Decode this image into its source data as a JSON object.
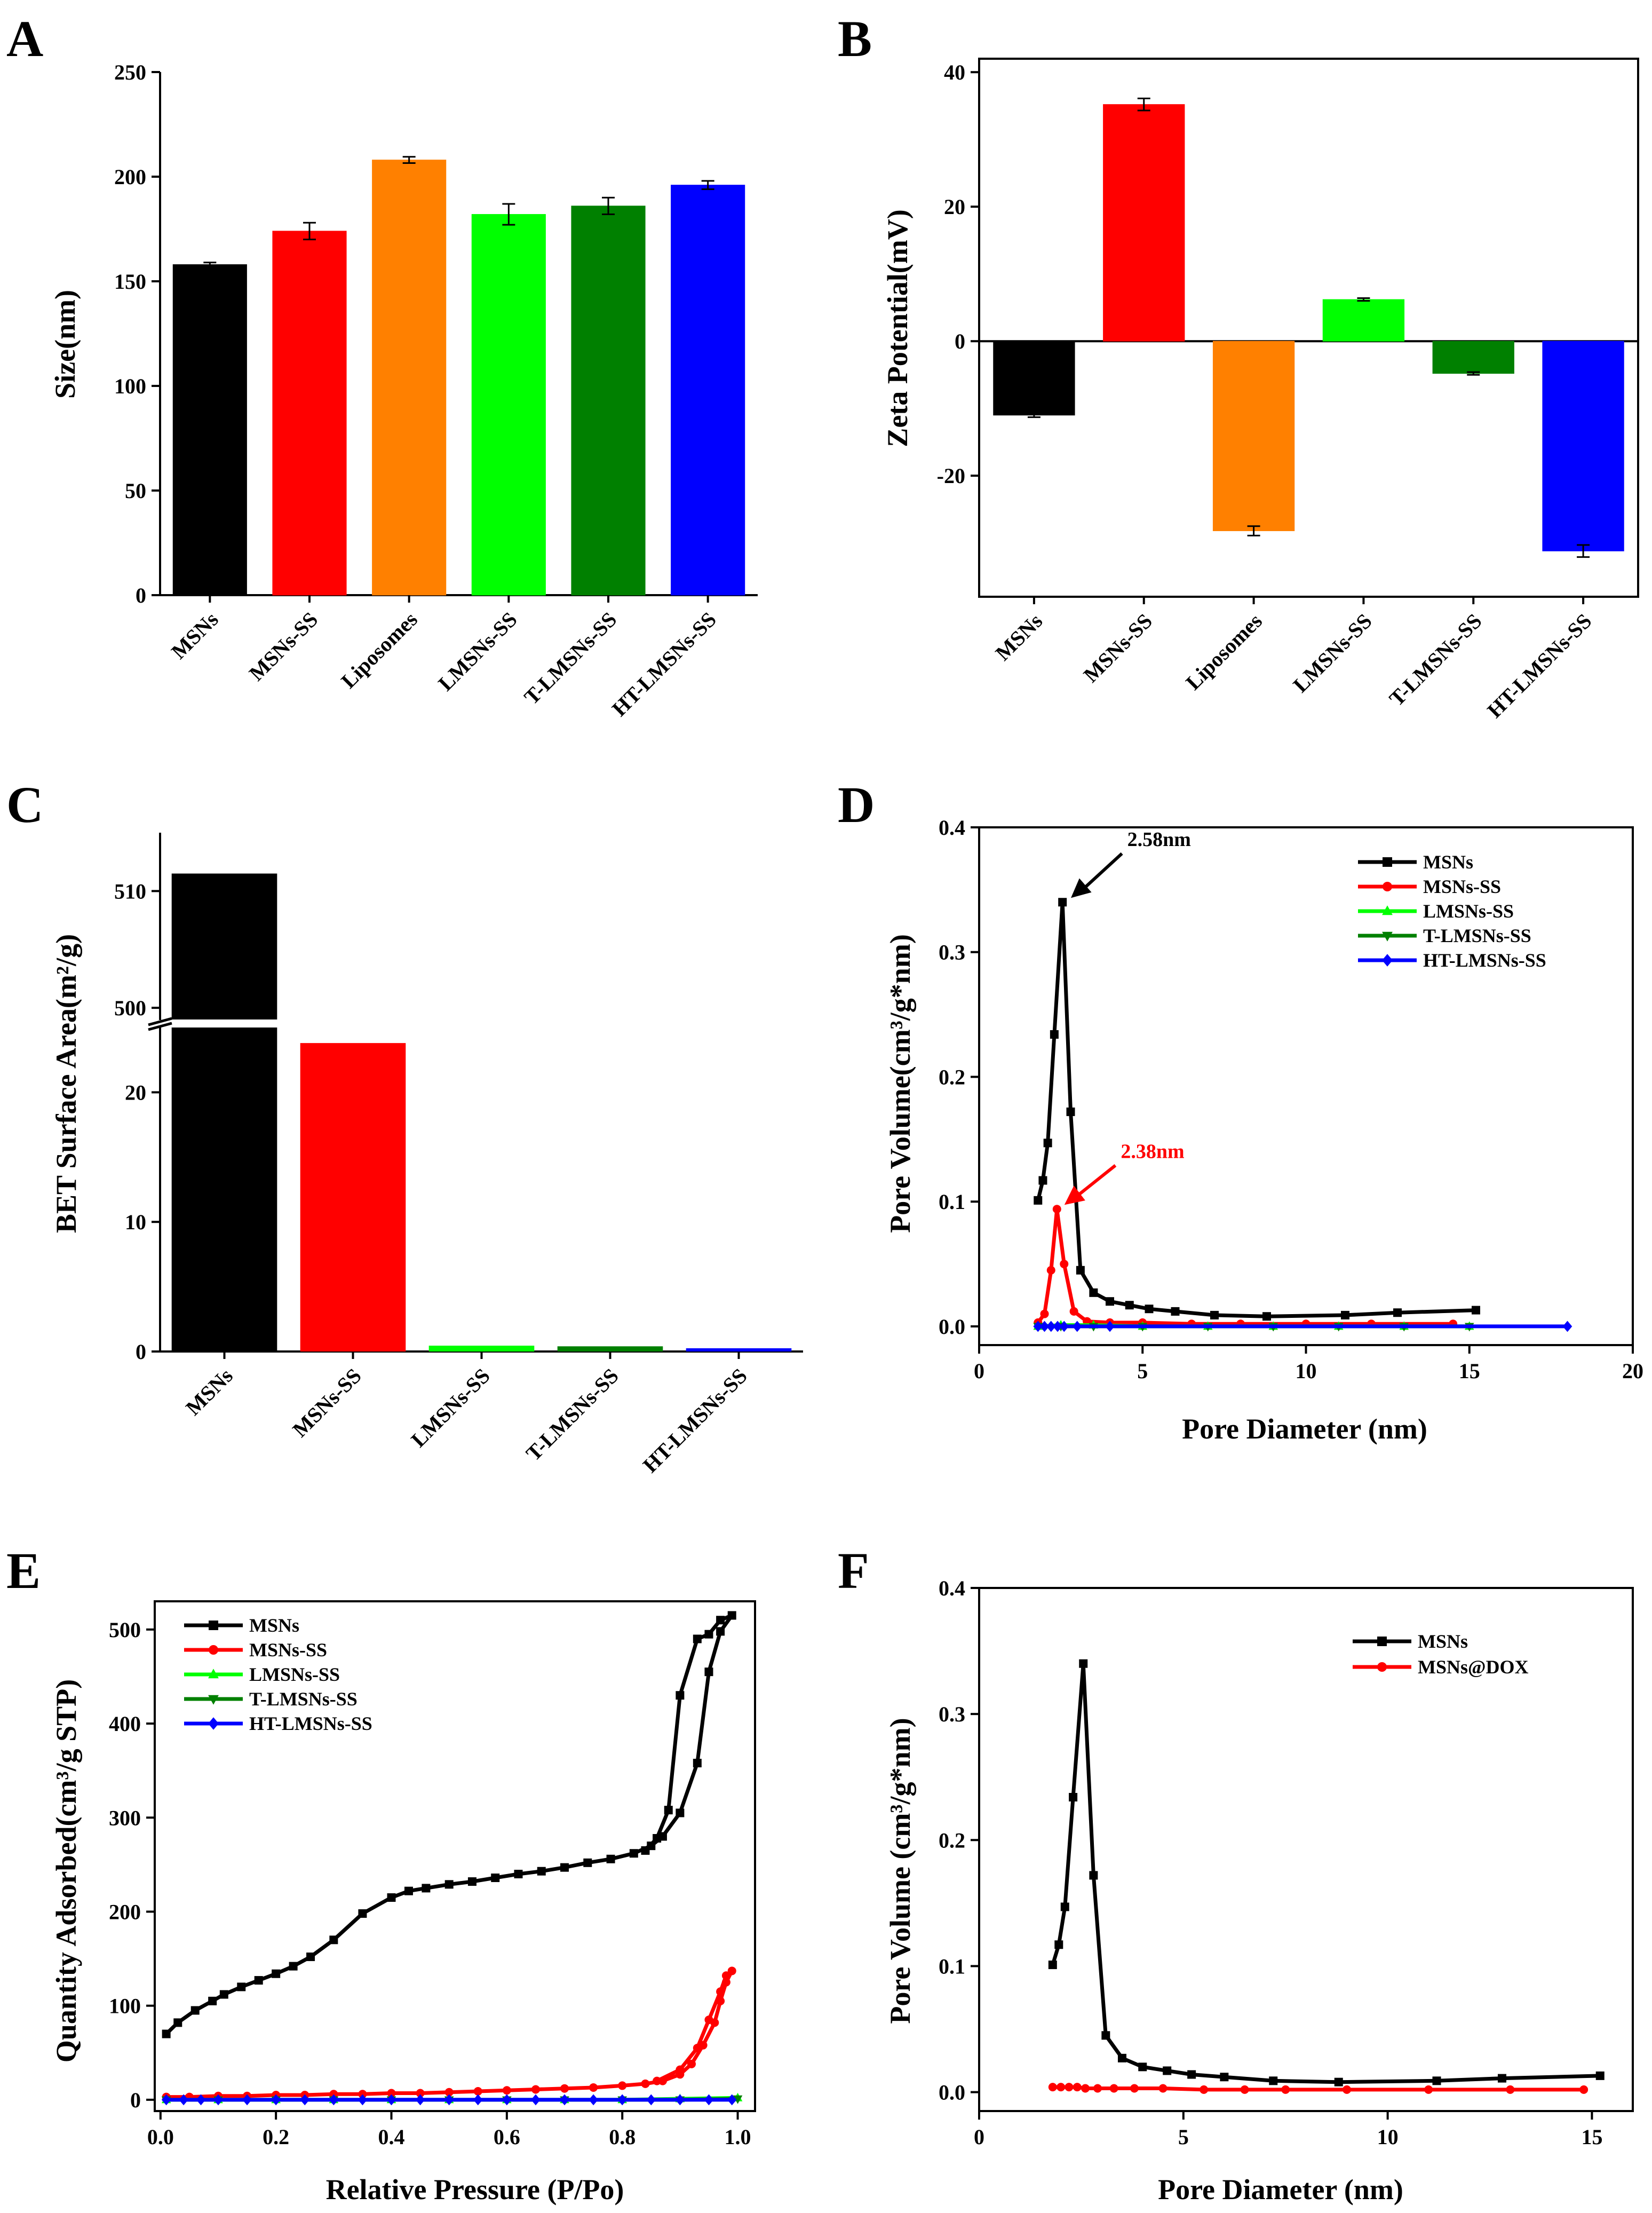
{
  "chart_data": [
    {
      "panel": "A",
      "type": "bar",
      "categories": [
        "MSNs",
        "MSNs-SS",
        "Liposomes",
        "LMSNs-SS",
        "T-LMSNs-SS",
        "HT-LMSNs-SS"
      ],
      "values": [
        158,
        174,
        208,
        182,
        186,
        196
      ],
      "errors": [
        1,
        4,
        1.5,
        5,
        4,
        2
      ],
      "colors": [
        "#000000",
        "#ff0000",
        "#ff8000",
        "#00ff00",
        "#008000",
        "#0000ff"
      ],
      "title": "",
      "xlabel": "",
      "ylabel": "Size(nm)",
      "ylim": [
        0,
        250
      ],
      "yticks": [
        0,
        50,
        100,
        150,
        200,
        250
      ],
      "grid": false
    },
    {
      "panel": "B",
      "type": "bar",
      "categories": [
        "MSNs",
        "MSNs-SS",
        "Liposomes",
        "LMSNs-SS",
        "T-LMSNs-SS",
        "HT-LMSNs-SS"
      ],
      "values": [
        -11,
        35.2,
        -28.2,
        6.2,
        -4.8,
        -31.2
      ],
      "errors": [
        0.3,
        0.9,
        0.7,
        0.2,
        0.2,
        0.9
      ],
      "colors": [
        "#000000",
        "#ff0000",
        "#ff8000",
        "#00ff00",
        "#008000",
        "#0000ff"
      ],
      "title": "",
      "xlabel": "",
      "ylabel": "Zeta Potential(mV)",
      "ylim": [
        -38,
        42
      ],
      "yticks": [
        -20,
        0,
        20,
        40
      ],
      "grid": false
    },
    {
      "panel": "C",
      "type": "bar",
      "categories": [
        "MSNs",
        "MSNs-SS",
        "LMSNs-SS",
        "T-LMSNs-SS",
        "HT-LMSNs-SS"
      ],
      "values": [
        511.5,
        23.8,
        0.45,
        0.4,
        0.25
      ],
      "colors": [
        "#000000",
        "#ff0000",
        "#00ff00",
        "#008000",
        "#0000ff"
      ],
      "title": "",
      "xlabel": "",
      "ylabel": "BET Surface Area(m²/g)",
      "y_break": {
        "lower": [
          0,
          25
        ],
        "upper": [
          499,
          515
        ]
      },
      "yticks_lower": [
        0,
        10,
        20
      ],
      "yticks_upper": [
        500,
        510
      ],
      "grid": false
    },
    {
      "panel": "D",
      "type": "line",
      "xlabel": "Pore Diameter (nm)",
      "ylabel": "Pore Volume(cm³/g*nm)",
      "xlim": [
        0,
        20
      ],
      "ylim": [
        -0.015,
        0.4
      ],
      "xticks": [
        0,
        5,
        10,
        15,
        20
      ],
      "yticks": [
        0.0,
        0.1,
        0.2,
        0.3,
        0.4
      ],
      "legend_position": "top-right",
      "series": [
        {
          "name": "MSNs",
          "color": "#000000",
          "marker": "square",
          "x": [
            1.8,
            1.95,
            2.1,
            2.3,
            2.55,
            2.8,
            3.1,
            3.5,
            4.0,
            4.6,
            5.2,
            6.0,
            7.2,
            8.8,
            11.2,
            12.8,
            15.2
          ],
          "y": [
            0.101,
            0.117,
            0.147,
            0.234,
            0.34,
            0.172,
            0.045,
            0.027,
            0.02,
            0.017,
            0.014,
            0.012,
            0.009,
            0.008,
            0.009,
            0.011,
            0.013
          ]
        },
        {
          "name": "MSNs-SS",
          "color": "#ff0000",
          "marker": "circle",
          "x": [
            1.8,
            2.0,
            2.2,
            2.38,
            2.6,
            2.9,
            3.3,
            4.0,
            5.0,
            6.5,
            8.0,
            10.0,
            12.0,
            14.5
          ],
          "y": [
            0.003,
            0.01,
            0.045,
            0.094,
            0.05,
            0.012,
            0.004,
            0.003,
            0.003,
            0.002,
            0.002,
            0.002,
            0.002,
            0.002
          ]
        },
        {
          "name": "LMSNs-SS",
          "color": "#00ff00",
          "marker": "triangle-up",
          "x": [
            1.8,
            2.5,
            3.5,
            5.0,
            7.0,
            9.0,
            11.0,
            13.0,
            15.0
          ],
          "y": [
            0.0,
            0.001,
            0.001,
            0.0,
            0.0,
            0.0,
            0.0,
            0.0,
            0.0
          ]
        },
        {
          "name": "T-LMSNs-SS",
          "color": "#008000",
          "marker": "triangle-down",
          "x": [
            1.8,
            2.5,
            3.5,
            5.0,
            7.0,
            9.0,
            11.0,
            13.0,
            15.0
          ],
          "y": [
            0.0,
            0.0,
            0.0,
            0.0,
            0.0,
            0.0,
            0.0,
            0.0,
            0.0
          ]
        },
        {
          "name": "HT-LMSNs-SS",
          "color": "#0000ff",
          "marker": "diamond",
          "x": [
            1.8,
            2.0,
            2.2,
            2.4,
            2.6,
            3.0,
            4.0,
            18.0
          ],
          "y": [
            0.0,
            0.0,
            0.0,
            0.0,
            0.0,
            0.0,
            0.0,
            0.0
          ]
        }
      ],
      "annotations": [
        {
          "text": "2.58nm",
          "color": "#000000",
          "x": 2.58,
          "y": 0.34,
          "label_x": 4.5,
          "label_y": 0.385
        },
        {
          "text": "2.38nm",
          "color": "#ff0000",
          "x": 2.38,
          "y": 0.094,
          "label_x": 4.3,
          "label_y": 0.135
        }
      ]
    },
    {
      "panel": "E",
      "type": "line",
      "xlabel": "Relative Pressure (P/Po)",
      "ylabel": "Quantity Adsorbed(cm³/g STP)",
      "xlim": [
        -0.01,
        1.03
      ],
      "ylim": [
        -12,
        530
      ],
      "xticks": [
        0.0,
        0.2,
        0.4,
        0.6,
        0.8,
        1.0
      ],
      "yticks": [
        0,
        100,
        200,
        300,
        400,
        500
      ],
      "legend_position": "top-left",
      "series": [
        {
          "name": "MSNs",
          "color": "#000000",
          "marker": "square",
          "x": [
            0.01,
            0.03,
            0.06,
            0.09,
            0.11,
            0.14,
            0.17,
            0.2,
            0.23,
            0.26,
            0.3,
            0.35,
            0.4,
            0.43,
            0.46,
            0.5,
            0.54,
            0.58,
            0.62,
            0.66,
            0.7,
            0.74,
            0.78,
            0.82,
            0.85,
            0.87,
            0.9,
            0.93,
            0.95,
            0.97,
            0.99,
            0.97,
            0.95,
            0.93,
            0.9,
            0.88,
            0.86,
            0.84
          ],
          "y": [
            70,
            82,
            95,
            105,
            112,
            120,
            127,
            134,
            142,
            152,
            170,
            198,
            215,
            222,
            225,
            229,
            232,
            236,
            240,
            243,
            247,
            252,
            256,
            262,
            270,
            280,
            305,
            358,
            455,
            498,
            515,
            510,
            495,
            490,
            430,
            308,
            278,
            265
          ]
        },
        {
          "name": "MSNs-SS",
          "color": "#ff0000",
          "marker": "circle",
          "x": [
            0.01,
            0.05,
            0.1,
            0.15,
            0.2,
            0.25,
            0.3,
            0.35,
            0.4,
            0.45,
            0.5,
            0.55,
            0.6,
            0.65,
            0.7,
            0.75,
            0.8,
            0.84,
            0.87,
            0.9,
            0.92,
            0.94,
            0.96,
            0.97,
            0.98,
            0.99,
            0.98,
            0.97,
            0.95,
            0.93,
            0.9,
            0.86
          ],
          "y": [
            3,
            3,
            4,
            4,
            5,
            5,
            6,
            6,
            7,
            7,
            8,
            9,
            10,
            11,
            12,
            13,
            15,
            17,
            20,
            27,
            38,
            58,
            82,
            105,
            125,
            137,
            132,
            115,
            85,
            55,
            32,
            20
          ]
        },
        {
          "name": "LMSNs-SS",
          "color": "#00ff00",
          "marker": "triangle-up",
          "x": [
            0.01,
            0.1,
            0.2,
            0.3,
            0.4,
            0.5,
            0.6,
            0.7,
            0.8,
            0.9,
            1.0
          ],
          "y": [
            0,
            0,
            0,
            0,
            0,
            0,
            0,
            0,
            0,
            1,
            2
          ]
        },
        {
          "name": "T-LMSNs-SS",
          "color": "#008000",
          "marker": "triangle-down",
          "x": [
            0.01,
            0.1,
            0.2,
            0.3,
            0.4,
            0.5,
            0.6,
            0.7,
            0.8,
            0.9,
            1.0
          ],
          "y": [
            0,
            0,
            0,
            0,
            0,
            0,
            0,
            0,
            0,
            0,
            1
          ]
        },
        {
          "name": "HT-LMSNs-SS",
          "color": "#0000ff",
          "marker": "diamond",
          "x": [
            0.01,
            0.04,
            0.07,
            0.1,
            0.15,
            0.2,
            0.25,
            0.3,
            0.35,
            0.4,
            0.45,
            0.5,
            0.55,
            0.6,
            0.65,
            0.7,
            0.75,
            0.8,
            0.85,
            0.9,
            0.95,
            0.99
          ],
          "y": [
            0,
            0,
            0,
            0,
            0,
            0,
            0,
            0,
            0,
            0,
            0,
            0,
            0,
            0,
            0,
            0,
            0,
            0,
            0,
            0,
            0,
            0
          ]
        }
      ]
    },
    {
      "panel": "F",
      "type": "line",
      "xlabel": "Pore Diameter (nm)",
      "ylabel": "Pore Volume (cm³/g*nm)",
      "xlim": [
        0,
        16
      ],
      "ylim": [
        -0.015,
        0.4
      ],
      "xticks": [
        0,
        5,
        10,
        15
      ],
      "yticks": [
        0.0,
        0.1,
        0.2,
        0.3,
        0.4
      ],
      "legend_position": "top-right",
      "series": [
        {
          "name": "MSNs",
          "color": "#000000",
          "marker": "square",
          "x": [
            1.8,
            1.95,
            2.1,
            2.3,
            2.55,
            2.8,
            3.1,
            3.5,
            4.0,
            4.6,
            5.2,
            6.0,
            7.2,
            8.8,
            11.2,
            12.8,
            15.2
          ],
          "y": [
            0.101,
            0.117,
            0.147,
            0.234,
            0.34,
            0.172,
            0.045,
            0.027,
            0.02,
            0.017,
            0.014,
            0.012,
            0.009,
            0.008,
            0.009,
            0.011,
            0.013
          ]
        },
        {
          "name": "MSNs@DOX",
          "color": "#ff0000",
          "marker": "circle",
          "x": [
            1.8,
            2.0,
            2.2,
            2.4,
            2.6,
            2.9,
            3.3,
            3.8,
            4.5,
            5.5,
            6.5,
            7.5,
            9.0,
            11.0,
            13.0,
            14.8
          ],
          "y": [
            0.004,
            0.004,
            0.004,
            0.004,
            0.003,
            0.003,
            0.003,
            0.003,
            0.003,
            0.002,
            0.002,
            0.002,
            0.002,
            0.002,
            0.002,
            0.002
          ]
        }
      ]
    }
  ],
  "panels": {
    "A": {
      "letter": "A"
    },
    "B": {
      "letter": "B"
    },
    "C": {
      "letter": "C",
      "upper_y_labels": [
        "500",
        "510"
      ]
    },
    "D": {
      "letter": "D"
    },
    "E": {
      "letter": "E"
    },
    "F": {
      "letter": "F"
    }
  }
}
